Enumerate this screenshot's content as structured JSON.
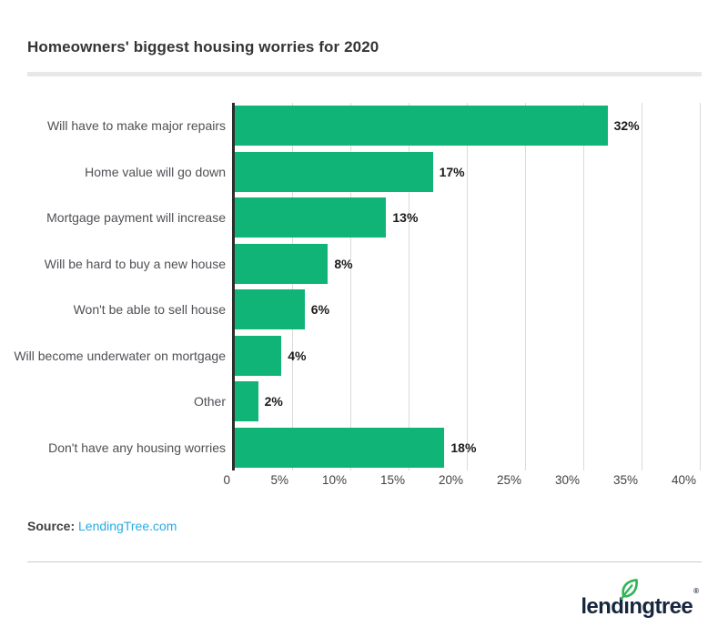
{
  "chart_data": {
    "type": "bar",
    "orientation": "horizontal",
    "title": "Homeowners' biggest housing worries for 2020",
    "categories": [
      "Will have to make major repairs",
      "Home value will go down",
      "Mortgage payment will increase",
      "Will be hard to buy a new house",
      "Won't be able to sell house",
      "Will become underwater on mortgage",
      "Other",
      "Don't have any housing worries"
    ],
    "values": [
      32,
      17,
      13,
      8,
      6,
      4,
      2,
      18
    ],
    "data_labels": [
      "32%",
      "17%",
      "13%",
      "8%",
      "6%",
      "4%",
      "2%",
      "18%"
    ],
    "x_tick_labels": [
      "0",
      "5%",
      "10%",
      "15%",
      "20%",
      "25%",
      "30%",
      "35%",
      "40%"
    ],
    "x_tick_values": [
      0,
      5,
      10,
      15,
      20,
      25,
      30,
      35,
      40
    ],
    "xlim": [
      0,
      40
    ],
    "xlabel": "",
    "ylabel": "",
    "grid": true,
    "legend": false,
    "bar_color": "#11b477",
    "axis_color": "#2d2d2d",
    "grid_color": "#dadada"
  },
  "source": {
    "label": "Source:",
    "link_text": "LendingTree.com",
    "link_color": "#29abe2"
  },
  "footer": {
    "logo_part1": "lend",
    "logo_part2": "ı",
    "logo_part3": "ngtree",
    "registered_mark": "®",
    "logo_color": "#16263c",
    "leaf_color": "#2fb457",
    "leaf_icon": "leaf-icon"
  }
}
